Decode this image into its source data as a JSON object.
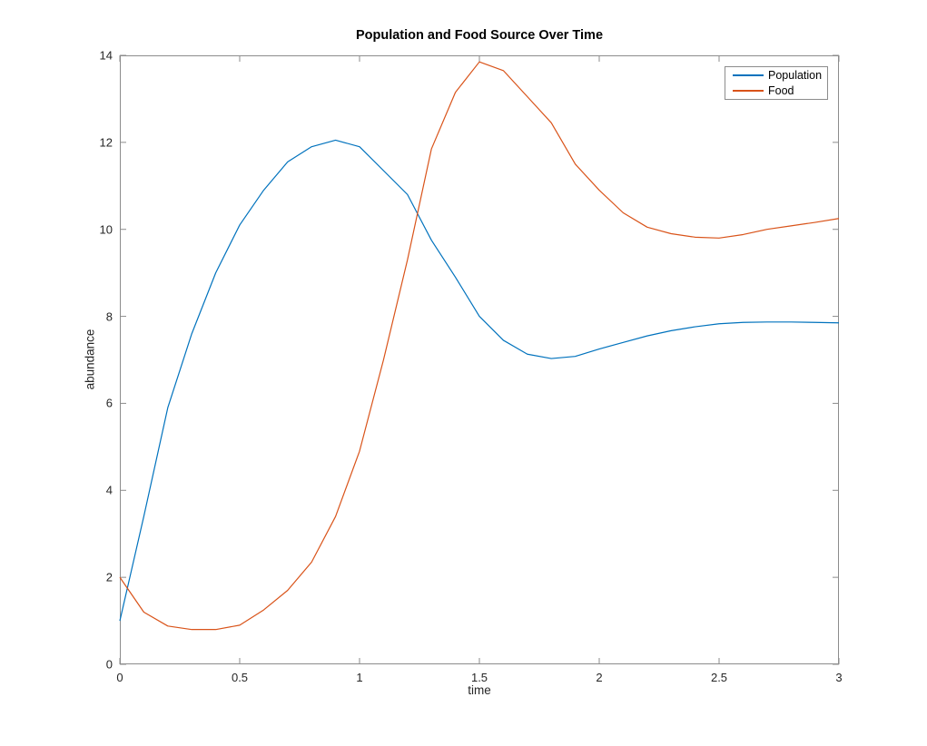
{
  "title": "Population and Food Source Over Time",
  "colors": {
    "population_line": "#0072BD",
    "food_line": "#D95319",
    "axis": "#8c8c8c",
    "tick_text": "#262626",
    "background": "#ffffff"
  },
  "chart_data": {
    "type": "line",
    "title": "Population and Food Source Over Time",
    "xlabel": "time",
    "ylabel": "abundance",
    "xlim": [
      0,
      3
    ],
    "ylim": [
      0,
      14
    ],
    "grid": false,
    "box": true,
    "xticks": [
      0,
      0.5,
      1,
      1.5,
      2,
      2.5,
      3
    ],
    "xtick_labels": [
      "0",
      "0.5",
      "1",
      "1.5",
      "2",
      "2.5",
      "3"
    ],
    "yticks": [
      0,
      2,
      4,
      6,
      8,
      10,
      12,
      14
    ],
    "ytick_labels": [
      "0",
      "2",
      "4",
      "6",
      "8",
      "10",
      "12",
      "14"
    ],
    "legend": {
      "position": "top-right",
      "entries": [
        {
          "label": "Population",
          "color": "#0072BD"
        },
        {
          "label": "Food",
          "color": "#D95319"
        }
      ]
    },
    "x": [
      0,
      0.1,
      0.2,
      0.3,
      0.4,
      0.5,
      0.6,
      0.7,
      0.8,
      0.9,
      1.0,
      1.1,
      1.2,
      1.3,
      1.4,
      1.5,
      1.6,
      1.7,
      1.8,
      1.9,
      2.0,
      2.1,
      2.2,
      2.3,
      2.4,
      2.5,
      2.6,
      2.7,
      2.8,
      2.9,
      3.0
    ],
    "series": [
      {
        "name": "Population",
        "color": "#0072BD",
        "values": [
          1.0,
          3.4,
          5.9,
          7.6,
          9.0,
          10.1,
          10.9,
          11.55,
          11.9,
          12.05,
          11.9,
          11.35,
          10.8,
          9.75,
          8.9,
          8.0,
          7.45,
          7.13,
          7.03,
          7.08,
          7.25,
          7.4,
          7.55,
          7.67,
          7.76,
          7.83,
          7.86,
          7.87,
          7.87,
          7.86,
          7.85
        ]
      },
      {
        "name": "Food",
        "color": "#D95319",
        "values": [
          2.0,
          1.2,
          0.88,
          0.8,
          0.8,
          0.9,
          1.25,
          1.7,
          2.35,
          3.4,
          4.9,
          7.0,
          9.3,
          11.85,
          13.15,
          13.85,
          13.65,
          13.05,
          12.45,
          11.5,
          10.9,
          10.38,
          10.05,
          9.9,
          9.82,
          9.8,
          9.88,
          10.0,
          10.08,
          10.16,
          10.25
        ]
      }
    ]
  }
}
